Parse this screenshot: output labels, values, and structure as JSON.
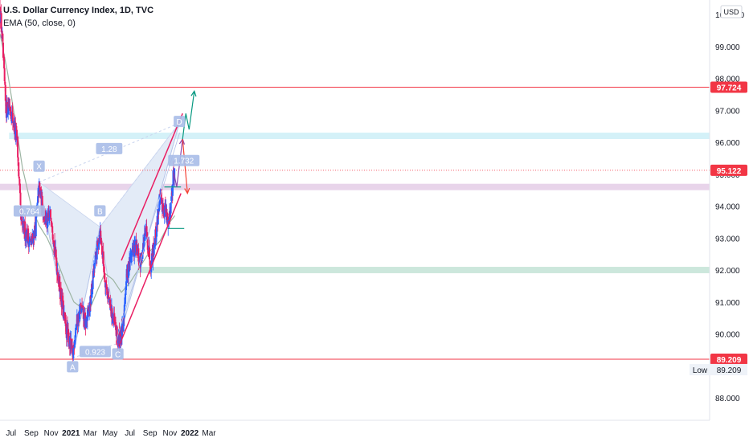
{
  "legend": {
    "title": "U.S. Dollar Currency Index, 1D, TVC",
    "indicator": "EMA (50, close, 0)"
  },
  "price_axis": {
    "currency": "USD",
    "low_label": "Low",
    "low_value": "89.209"
  },
  "colors": {
    "up": "#2962ff",
    "down": "#e91e63",
    "ema": "#9db5a3",
    "level_line": "#f23645",
    "pattern_fill": "#e3ebf7",
    "cyan_zone": "#cdeff7",
    "purple_zone": "#e4cde6",
    "green_zone": "#c3e3d6",
    "channel": "#e91e63",
    "proj_purple": "#8e44ad",
    "proj_red": "#f44336",
    "proj_green": "#089981",
    "label_bg": "#a9bde8"
  },
  "chart_data": {
    "type": "candlestick",
    "symbol": "U.S. Dollar Currency Index",
    "timeframe": "1D",
    "source": "TVC",
    "indicator": "EMA (50, close, 0)",
    "x_tick_labels": [
      "Jul",
      "Sep",
      "Nov",
      "2021",
      "Mar",
      "May",
      "Jul",
      "Sep",
      "Nov",
      "2022",
      "Mar"
    ],
    "y_tick_labels": [
      "100.000",
      "99.000",
      "98.000",
      "97.000",
      "96.000",
      "95.000",
      "94.000",
      "93.000",
      "92.000",
      "91.000",
      "90.000",
      "89.000",
      "88.000"
    ],
    "ylim": [
      87.6,
      100.6
    ],
    "price_series": {
      "t": [
        "2020-05-28",
        "2020-06-05",
        "2020-06-15",
        "2020-06-25",
        "2020-07-05",
        "2020-07-20",
        "2020-08-01",
        "2020-08-15",
        "2020-09-01",
        "2020-09-15",
        "2020-09-25",
        "2020-10-05",
        "2020-10-20",
        "2020-11-01",
        "2020-11-15",
        "2020-12-01",
        "2020-12-15",
        "2021-01-01",
        "2021-01-06",
        "2021-01-15",
        "2021-02-01",
        "2021-02-15",
        "2021-03-01",
        "2021-03-10",
        "2021-03-20",
        "2021-03-31",
        "2021-04-15",
        "2021-05-01",
        "2021-05-15",
        "2021-05-25",
        "2021-06-10",
        "2021-06-18",
        "2021-06-25",
        "2021-07-07",
        "2021-07-20",
        "2021-08-01",
        "2021-08-20",
        "2021-09-03",
        "2021-09-20",
        "2021-09-30",
        "2021-10-15",
        "2021-10-28",
        "2021-11-05",
        "2021-11-12",
        "2021-11-16"
      ],
      "v": [
        100.2,
        99.0,
        97.0,
        97.2,
        96.8,
        96.0,
        93.4,
        93.2,
        92.8,
        93.4,
        94.6,
        94.0,
        93.4,
        93.8,
        92.4,
        91.2,
        90.2,
        89.6,
        89.25,
        90.2,
        90.8,
        90.3,
        90.9,
        91.8,
        92.5,
        93.25,
        91.8,
        90.8,
        90.3,
        89.8,
        90.1,
        91.6,
        92.0,
        92.6,
        92.7,
        92.2,
        93.2,
        92.2,
        93.2,
        94.2,
        93.9,
        93.5,
        94.2,
        95.0,
        95.2
      ]
    },
    "ema50": {
      "t": [
        "2020-05-28",
        "2020-06-20",
        "2020-07-15",
        "2020-08-05",
        "2020-09-01",
        "2020-09-25",
        "2020-10-20",
        "2020-11-15",
        "2020-12-15",
        "2021-01-10",
        "2021-02-05",
        "2021-03-01",
        "2021-03-25",
        "2021-04-15",
        "2021-05-10",
        "2021-06-05",
        "2021-07-01",
        "2021-08-01",
        "2021-09-01",
        "2021-10-01",
        "2021-11-01",
        "2021-11-16"
      ],
      "v": [
        99.4,
        98.2,
        96.6,
        95.2,
        94.0,
        93.4,
        93.0,
        92.4,
        91.6,
        91.0,
        90.8,
        90.8,
        91.4,
        91.9,
        91.7,
        91.3,
        91.6,
        92.1,
        92.6,
        92.9,
        93.5,
        93.7
      ]
    },
    "horizontal_levels": [
      97.724,
      95.122,
      89.209
    ],
    "level_labels": [
      "97.724",
      "95.122",
      "89.209"
    ],
    "zones": [
      {
        "name": "cyan",
        "y1": 96.1,
        "y2": 96.3
      },
      {
        "name": "purple",
        "y1": 94.5,
        "y2": 94.7
      },
      {
        "name": "green",
        "y1": 91.9,
        "y2": 92.1
      }
    ],
    "pattern": {
      "points": [
        {
          "label": "X",
          "t": "2020-09-25",
          "v": 94.75
        },
        {
          "label": "A",
          "t": "2021-01-06",
          "v": 89.25
        },
        {
          "label": "B",
          "t": "2021-03-31",
          "v": 93.35
        },
        {
          "label": "C",
          "t": "2021-05-25",
          "v": 89.7
        },
        {
          "label": "D",
          "t": "2021-11-30",
          "v": 96.6
        }
      ],
      "ratios": [
        "0.764",
        "0.923",
        "1.28",
        "1.732"
      ]
    },
    "channel": {
      "upper": [
        {
          "t": "2021-06-05",
          "v": 92.3
        },
        {
          "t": "2021-12-10",
          "v": 96.9
        }
      ],
      "lower": [
        {
          "t": "2021-05-28",
          "v": 89.6
        },
        {
          "t": "2021-12-05",
          "v": 94.4
        }
      ]
    }
  }
}
